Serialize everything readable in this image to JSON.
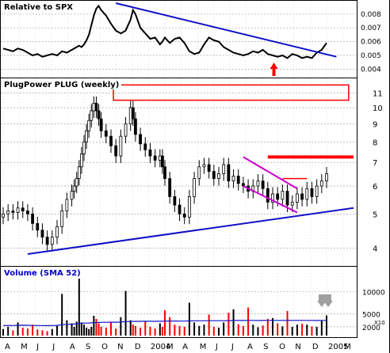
{
  "chart_data": [
    {
      "type": "line",
      "panel": "relative",
      "title": "Relative to SPX",
      "y_ticks": [
        "0.008",
        "0.007",
        "0.006",
        "0.005",
        "0.004"
      ],
      "ylim": [
        0.0035,
        0.0088
      ],
      "series": [
        {
          "x": [
            0,
            4,
            8,
            12,
            16,
            20,
            24,
            28,
            32,
            36,
            40,
            44,
            48,
            52,
            56,
            58,
            60,
            62,
            64,
            66,
            68,
            70,
            72,
            74,
            76,
            78,
            80,
            84,
            88,
            92,
            96,
            100,
            104,
            106,
            108,
            112,
            116,
            120,
            124,
            128,
            130,
            132,
            136,
            140,
            144,
            148,
            152,
            156,
            160,
            164,
            168,
            172,
            176,
            180,
            184,
            188,
            192,
            196,
            200,
            204,
            208,
            212,
            216,
            220,
            224,
            228,
            232,
            236,
            240,
            244,
            248,
            252,
            256,
            260,
            264
          ],
          "values": [
            0.0055,
            0.0054,
            0.0053,
            0.0055,
            0.0054,
            0.0052,
            0.005,
            0.0051,
            0.0049,
            0.005,
            0.0051,
            0.005,
            0.0053,
            0.0052,
            0.0054,
            0.0055,
            0.0056,
            0.0057,
            0.0056,
            0.0058,
            0.0061,
            0.0065,
            0.0072,
            0.0079,
            0.0084,
            0.0086,
            0.0083,
            0.0079,
            0.0073,
            0.0068,
            0.0066,
            0.0068,
            0.0076,
            0.0083,
            0.008,
            0.007,
            0.0066,
            0.0062,
            0.0063,
            0.0058,
            0.006,
            0.0063,
            0.0059,
            0.0062,
            0.0063,
            0.0059,
            0.0053,
            0.0051,
            0.0052,
            0.0058,
            0.0063,
            0.0061,
            0.006,
            0.0056,
            0.0054,
            0.0052,
            0.0051,
            0.005,
            0.0051,
            0.0053,
            0.0052,
            0.0054,
            0.0051,
            0.005,
            0.0049,
            0.005,
            0.0048,
            0.0051,
            0.005,
            0.0048,
            0.0049,
            0.0048,
            0.0052,
            0.0054,
            0.0059
          ]
        }
      ],
      "trendline": {
        "x": [
          92,
          272
        ],
        "values": [
          0.0088,
          0.0049
        ]
      },
      "arrow": {
        "x": 221,
        "color": "#ff0000"
      }
    },
    {
      "type": "candlestick",
      "panel": "price",
      "title": "PlugPower PLUG (weekly)",
      "y_ticks": [
        "11",
        "10",
        "9",
        "8",
        "7",
        "6",
        "5",
        "4"
      ],
      "ylim": [
        3.6,
        11.8
      ],
      "log_scale": true,
      "x": [
        0,
        4,
        8,
        12,
        16,
        20,
        24,
        28,
        32,
        36,
        40,
        44,
        48,
        52,
        56,
        58,
        60,
        62,
        64,
        66,
        68,
        70,
        72,
        74,
        76,
        78,
        80,
        84,
        88,
        92,
        96,
        100,
        104,
        106,
        108,
        112,
        116,
        120,
        124,
        128,
        130,
        132,
        136,
        140,
        144,
        148,
        152,
        156,
        160,
        164,
        168,
        172,
        176,
        180,
        184,
        188,
        192,
        196,
        200,
        204,
        208,
        212,
        216,
        220,
        224,
        228,
        232,
        236,
        240,
        244,
        248,
        252,
        256,
        260,
        264
      ],
      "close": [
        5.0,
        5.1,
        5.05,
        5.2,
        5.1,
        5.0,
        4.7,
        4.5,
        4.3,
        4.1,
        4.3,
        4.6,
        5.1,
        5.5,
        5.8,
        6.0,
        6.3,
        6.8,
        7.4,
        8.0,
        8.6,
        9.2,
        9.8,
        10.3,
        9.8,
        9.3,
        8.6,
        8.3,
        7.8,
        7.3,
        8.3,
        9.0,
        10.0,
        9.3,
        8.4,
        7.9,
        7.6,
        7.3,
        7.1,
        7.3,
        6.8,
        6.3,
        5.6,
        5.3,
        5.0,
        4.9,
        5.6,
        6.3,
        6.8,
        6.9,
        6.6,
        6.3,
        6.5,
        6.9,
        6.2,
        6.4,
        6.1,
        6.0,
        5.8,
        6.0,
        6.2,
        5.9,
        5.4,
        5.7,
        5.5,
        5.8,
        5.3,
        5.4,
        5.7,
        5.5,
        5.9,
        5.6,
        6.0,
        6.2,
        6.5
      ],
      "resistance_line": {
        "y": 7.25,
        "x": [
          216,
          286
        ],
        "color": "#ff0000"
      },
      "short_line": {
        "y": 6.3,
        "x": [
          228,
          248
        ],
        "color": "#ff0000"
      },
      "channel": {
        "upper": [
          [
            196,
            7.25
          ],
          [
            240,
            5.9
          ]
        ],
        "lower": [
          [
            196,
            6.0
          ],
          [
            240,
            5.05
          ]
        ],
        "color": "#cc00cc"
      },
      "support_line": {
        "x": [
          20,
          286
        ],
        "values": [
          3.85,
          5.2
        ]
      },
      "target_box": {
        "x": [
          90,
          282
        ],
        "values": [
          10.5,
          11.6
        ],
        "color": "#ff0000"
      }
    },
    {
      "type": "bar",
      "panel": "volume",
      "title": "Volume (SMA 52)",
      "y_ticks": [
        "10000",
        "5000",
        "2000"
      ],
      "ylim": [
        0,
        13000
      ],
      "multiplier_label": "X10",
      "x": [
        0,
        4,
        8,
        12,
        16,
        20,
        24,
        28,
        32,
        36,
        40,
        44,
        48,
        52,
        56,
        58,
        60,
        62,
        64,
        66,
        68,
        70,
        72,
        74,
        76,
        78,
        80,
        84,
        88,
        92,
        96,
        100,
        104,
        106,
        108,
        112,
        116,
        120,
        124,
        128,
        130,
        132,
        136,
        140,
        144,
        148,
        152,
        156,
        160,
        164,
        168,
        172,
        176,
        180,
        184,
        188,
        192,
        196,
        200,
        204,
        208,
        212,
        216,
        220,
        224,
        228,
        232,
        236,
        240,
        244,
        248,
        252,
        256,
        260,
        264
      ],
      "values": [
        1500,
        2000,
        1200,
        3000,
        1800,
        1600,
        2500,
        1400,
        1200,
        1000,
        1500,
        2200,
        9500,
        3500,
        2800,
        2000,
        3200,
        13000,
        3000,
        2500,
        1800,
        1500,
        2000,
        4500,
        3800,
        2800,
        2000,
        1800,
        3000,
        1600,
        4200,
        10200,
        3500,
        2500,
        2200,
        1800,
        3200,
        2000,
        1600,
        2800,
        2000,
        5800,
        4200,
        2500,
        2200,
        2000,
        7500,
        3000,
        2200,
        2500,
        4800,
        2000,
        1800,
        3000,
        5200,
        6000,
        2600,
        2200,
        6400,
        2500,
        1900,
        2300,
        3800,
        4000,
        2800,
        2100,
        5600,
        2000,
        2500,
        2700,
        2500,
        2100,
        2000,
        3400,
        4600
      ],
      "colors_up": "#000000",
      "colors_down": "#ff0000",
      "sma": [
        2300,
        2320,
        2300,
        2350,
        2360,
        2340,
        2320,
        2300,
        2290,
        2280,
        2290,
        2330,
        2500,
        2560,
        2600,
        2630,
        2660,
        2800,
        2820,
        2850,
        2860,
        2870,
        2900,
        2950,
        2980,
        3000,
        3020,
        3030,
        3050,
        3060,
        3080,
        3200,
        3230,
        3240,
        3250,
        3250,
        3260,
        3260,
        3250,
        3260,
        3260,
        3300,
        3320,
        3320,
        3310,
        3300,
        3360,
        3370,
        3370,
        3380,
        3400,
        3400,
        3390,
        3400,
        3420,
        3440,
        3440,
        3440,
        3460,
        3460,
        3450,
        3450,
        3460,
        3470,
        3470,
        3460,
        3480,
        3470,
        3470,
        3470,
        3470,
        3460,
        3450,
        3460,
        3470
      ],
      "down_arrows_color": "#a0a0a0"
    }
  ],
  "x_axis": {
    "labels": [
      "A",
      "M",
      "J",
      "J",
      "A",
      "S",
      "O",
      "N",
      "D",
      "2004",
      "M",
      "A",
      "M",
      "J",
      "J",
      "A",
      "S",
      "O",
      "N",
      "D",
      "2005",
      "M"
    ],
    "positions": [
      0,
      13,
      26,
      39,
      53,
      66,
      79,
      92,
      106,
      119,
      132,
      145,
      159,
      172,
      185,
      198,
      211,
      224,
      237,
      251,
      264,
      277
    ]
  }
}
